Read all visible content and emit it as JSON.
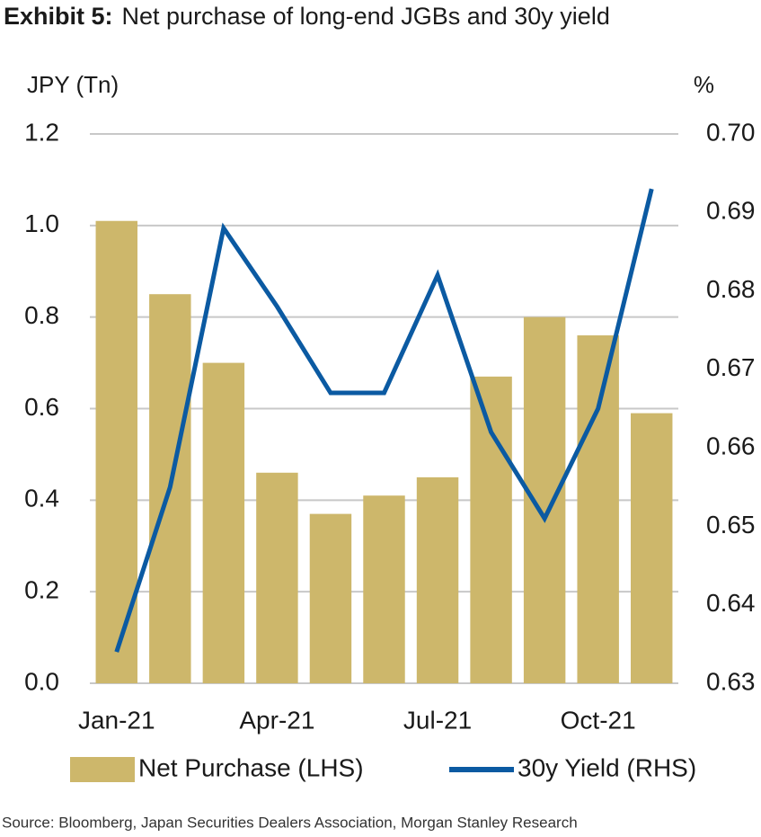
{
  "chart_data": {
    "type": "bar_line",
    "exhibit": "Exhibit 5:",
    "title": "Net purchase of long-end JGBs and 30y yield",
    "y_label": "JPY (Tn)",
    "y2_label": "%",
    "source": "Source: Bloomberg, Japan Securities Dealers Association, Morgan Stanley Research",
    "categories": [
      "Jan-21",
      null,
      null,
      "Apr-21",
      null,
      null,
      "Jul-21",
      null,
      null,
      "Oct-21",
      null
    ],
    "series": [
      {
        "name": "Net Purchase (LHS)",
        "type": "bar",
        "color": "#cdb76b",
        "values": [
          1.01,
          0.85,
          0.7,
          0.46,
          0.37,
          0.41,
          0.45,
          0.67,
          0.8,
          0.76,
          0.59
        ]
      },
      {
        "name": "30y Yield (RHS)",
        "type": "line",
        "axis": "y2",
        "color": "#0b5aa2",
        "values": [
          0.634,
          0.655,
          0.688,
          0.678,
          0.667,
          0.667,
          0.682,
          0.662,
          0.651,
          0.665,
          0.693
        ]
      }
    ],
    "ylim": [
      0,
      1.2
    ],
    "yticks": [
      {
        "value": 0,
        "label": "0.0"
      },
      0.2,
      0.4,
      0.6,
      0.8,
      {
        "value": 1,
        "label": "1.0"
      },
      1.2
    ],
    "y2lim": [
      0.63,
      0.7
    ],
    "y2ticks": [
      0.63,
      0.64,
      0.65,
      0.66,
      0.67,
      0.68,
      0.69,
      {
        "value": 0.7,
        "label": "0.70"
      }
    ],
    "grid": true
  }
}
